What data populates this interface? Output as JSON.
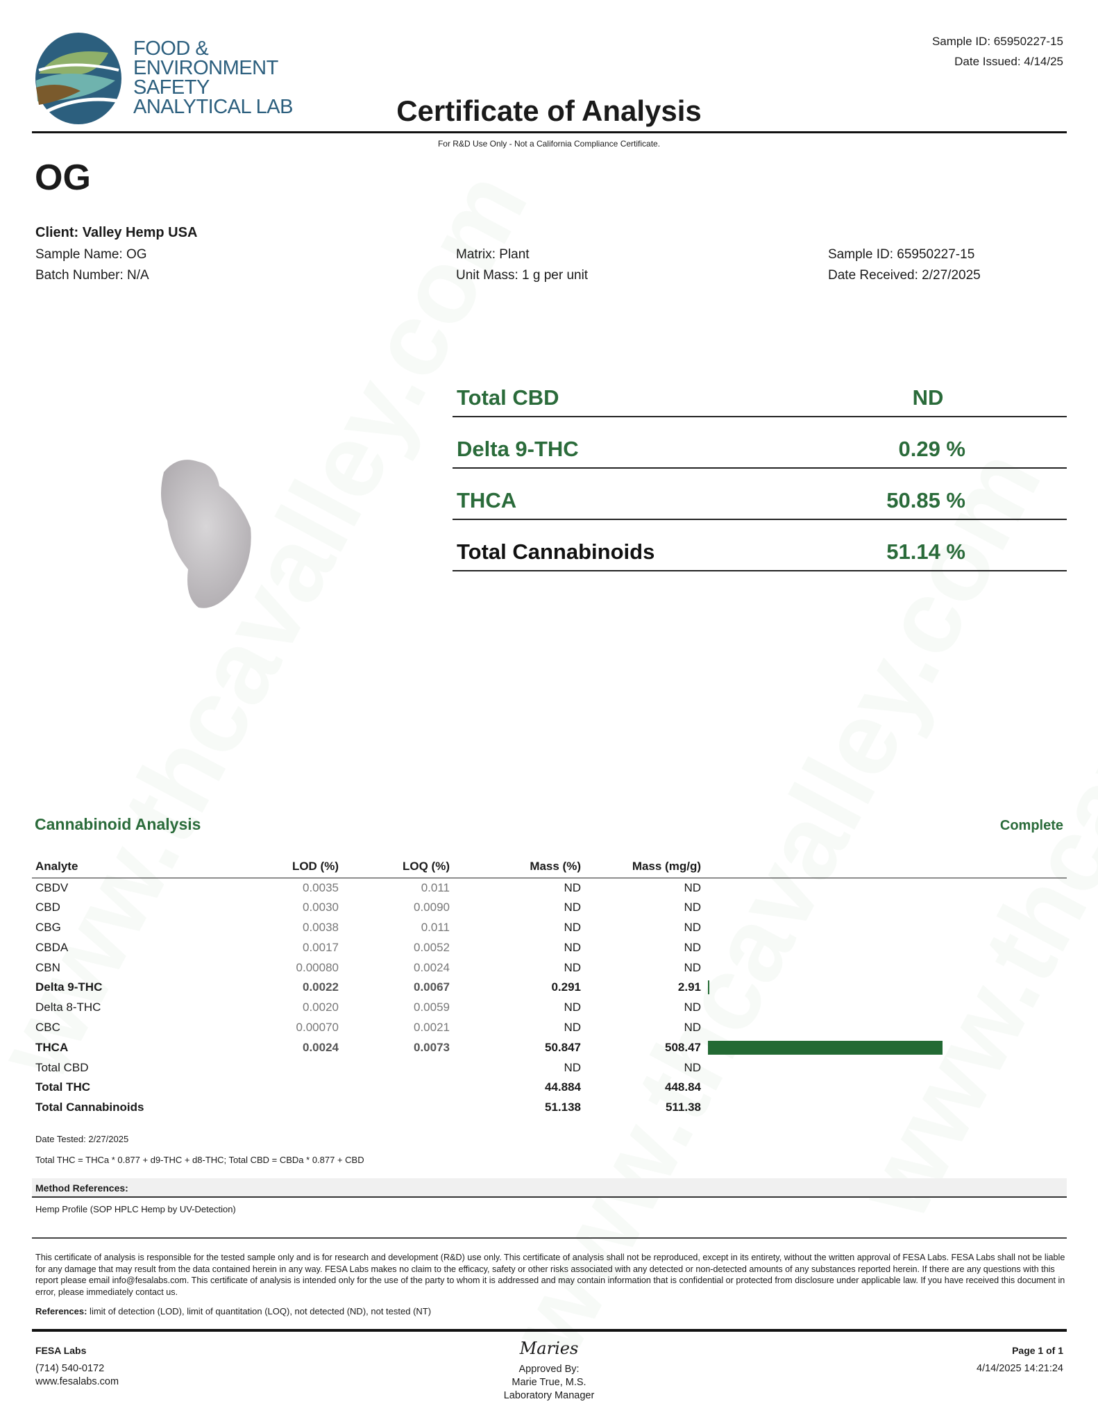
{
  "watermark": "www.thcavalley.com",
  "header": {
    "logo_lines": [
      "FOOD &",
      "ENVIRONMENT",
      "SAFETY",
      "ANALYTICAL LAB"
    ],
    "sample_id": "Sample ID: 65950227-15",
    "date_issued": "Date Issued: 4/14/25",
    "title": "Certificate of Analysis",
    "notice": "For R&D Use Only - Not a California Compliance Certificate."
  },
  "sample": {
    "name_heading": "OG",
    "client": "Client: Valley Hemp USA",
    "sample_name": "Sample Name: OG",
    "batch": "Batch Number: N/A",
    "matrix": "Matrix: Plant",
    "unit_mass": "Unit Mass: 1 g per unit",
    "sample_id": "Sample ID: 65950227-15",
    "date_received": "Date Received: 2/27/2025"
  },
  "summary": [
    {
      "label": "Total CBD",
      "value": "ND"
    },
    {
      "label": "Delta 9-THC",
      "value": "0.29 %"
    },
    {
      "label": "THCA",
      "value": "50.85 %"
    },
    {
      "label": "Total Cannabinoids",
      "value": "51.14 %"
    }
  ],
  "analysis": {
    "title": "Cannabinoid Analysis",
    "status": "Complete",
    "bar_color": "#236a34",
    "columns": [
      "Analyte",
      "LOD (%)",
      "LOQ (%)",
      "Mass (%)",
      "Mass (mg/g)"
    ],
    "rows": [
      {
        "analyte": "CBDV",
        "lod": "0.0035",
        "loq": "0.011",
        "mass_pct": "ND",
        "mass_mg": "ND",
        "bold": false,
        "mg_value": 0
      },
      {
        "analyte": "CBD",
        "lod": "0.0030",
        "loq": "0.0090",
        "mass_pct": "ND",
        "mass_mg": "ND",
        "bold": false,
        "mg_value": 0
      },
      {
        "analyte": "CBG",
        "lod": "0.0038",
        "loq": "0.011",
        "mass_pct": "ND",
        "mass_mg": "ND",
        "bold": false,
        "mg_value": 0
      },
      {
        "analyte": "CBDA",
        "lod": "0.0017",
        "loq": "0.0052",
        "mass_pct": "ND",
        "mass_mg": "ND",
        "bold": false,
        "mg_value": 0
      },
      {
        "analyte": "CBN",
        "lod": "0.00080",
        "loq": "0.0024",
        "mass_pct": "ND",
        "mass_mg": "ND",
        "bold": false,
        "mg_value": 0
      },
      {
        "analyte": "Delta 9-THC",
        "lod": "0.0022",
        "loq": "0.0067",
        "mass_pct": "0.291",
        "mass_mg": "2.91",
        "bold": true,
        "mg_value": 2.91
      },
      {
        "analyte": "Delta 8-THC",
        "lod": "0.0020",
        "loq": "0.0059",
        "mass_pct": "ND",
        "mass_mg": "ND",
        "bold": false,
        "mg_value": 0
      },
      {
        "analyte": "CBC",
        "lod": "0.00070",
        "loq": "0.0021",
        "mass_pct": "ND",
        "mass_mg": "ND",
        "bold": false,
        "mg_value": 0
      },
      {
        "analyte": "THCA",
        "lod": "0.0024",
        "loq": "0.0073",
        "mass_pct": "50.847",
        "mass_mg": "508.47",
        "bold": true,
        "mg_value": 508.47
      },
      {
        "analyte": "Total CBD",
        "lod": "",
        "loq": "",
        "mass_pct": "ND",
        "mass_mg": "ND",
        "bold": false,
        "mg_value": 0
      },
      {
        "analyte": "Total THC",
        "lod": "",
        "loq": "",
        "mass_pct": "44.884",
        "mass_mg": "448.84",
        "bold": true,
        "mg_value": 0
      },
      {
        "analyte": "Total Cannabinoids",
        "lod": "",
        "loq": "",
        "mass_pct": "51.138",
        "mass_mg": "511.38",
        "bold": true,
        "mg_value": 0
      }
    ],
    "date_tested": "Date Tested: 2/27/2025",
    "formula": "Total THC = THCa * 0.877 + d9-THC + d8-THC; Total CBD = CBDa * 0.877 + CBD"
  },
  "methods": {
    "heading": "Method References:",
    "text": "Hemp Profile (SOP HPLC Hemp by UV-Detection)"
  },
  "disclaimer": "This certificate of analysis is responsible for the tested sample only and is for research and development (R&D) use only. This certificate of analysis shall not be reproduced, except in its entirety, without the written approval of FESA Labs. FESA Labs shall not be liable for any damage that may result from the data contained herein in any way. FESA Labs makes no claim to the efficacy, safety or other risks associated with any detected or non-detected amounts of any substances reported herein. If there are any questions with this report please email info@fesalabs.com. This certificate of analysis is intended only for the use of the party to whom it is addressed and may contain information that is confidential or protected from disclosure under applicable law. If you have received this document in error, please immediately contact us.",
  "references": {
    "label": "References:",
    "text": " limit of detection (LOD), limit of quantitation (LOQ), not detected (ND), not tested (NT)"
  },
  "footer": {
    "company": "FESA Labs",
    "phone": "(714) 540-0172",
    "website": "www.fesalabs.com",
    "signature": "Maries",
    "approved_by": "Approved By:",
    "approver": "Marie True, M.S.",
    "approver_title": "Laboratory Manager",
    "page": "Page 1 of 1",
    "timestamp": "4/14/2025 14:21:24"
  }
}
